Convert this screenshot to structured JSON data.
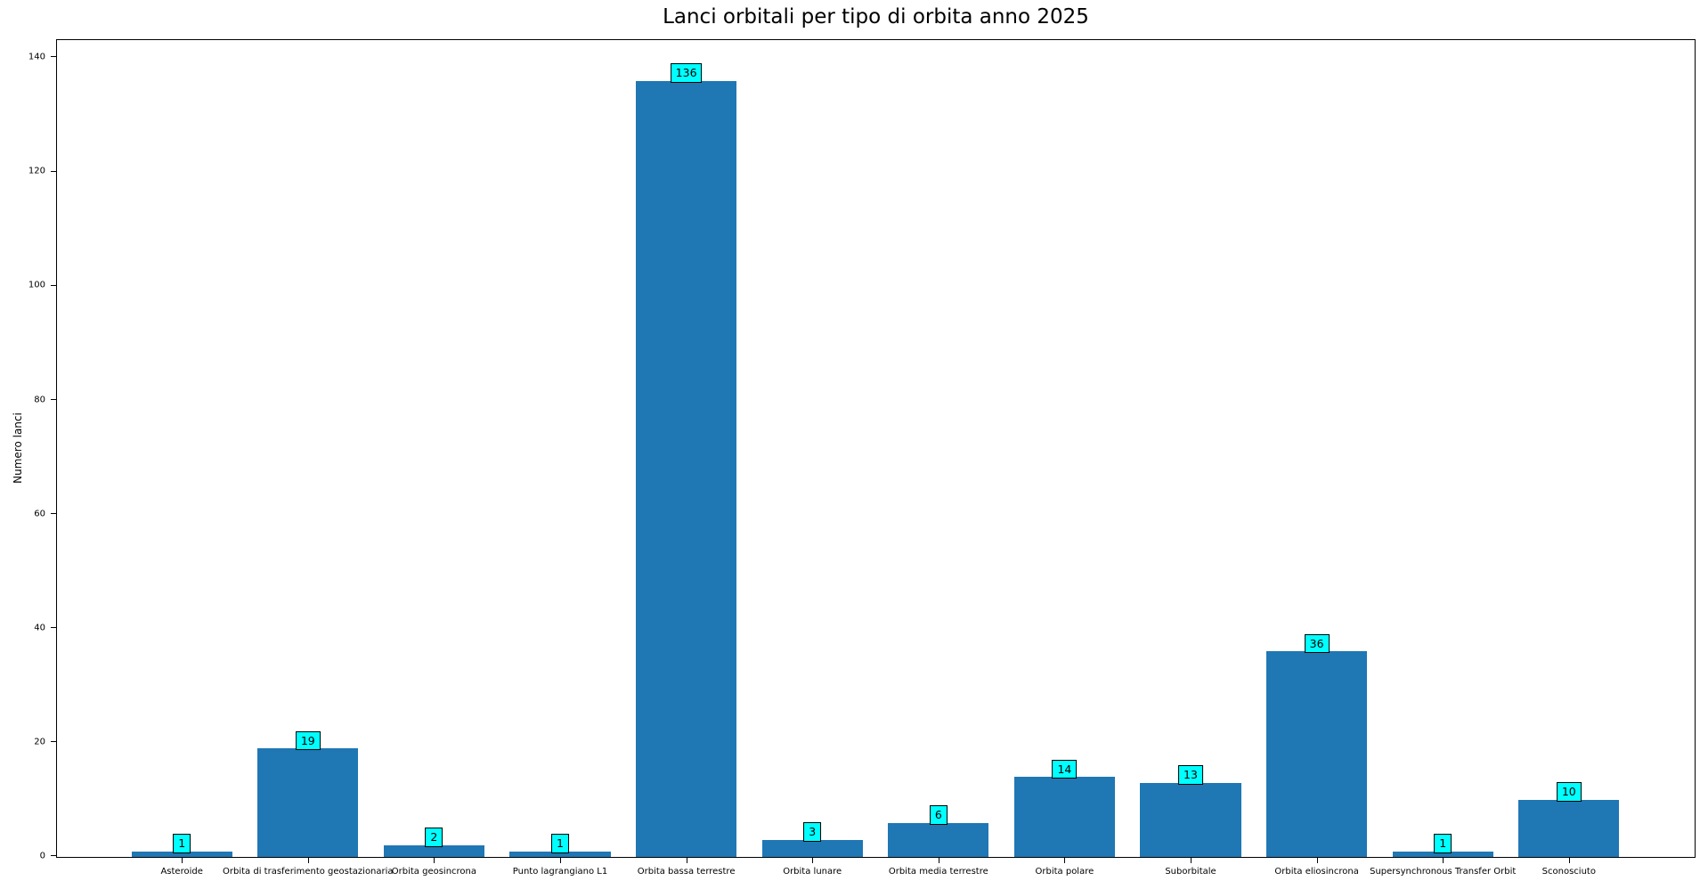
{
  "chart_data": {
    "type": "bar",
    "title": "Lanci orbitali per tipo di orbita anno 2025",
    "xlabel": "",
    "ylabel": "Numero lanci",
    "categories": [
      "Asteroide",
      "Orbita di trasferimento geostazionaria",
      "Orbita geosincrona",
      "Punto lagrangiano L1",
      "Orbita bassa terrestre",
      "Orbita lunare",
      "Orbita media terrestre",
      "Orbita polare",
      "Suborbitale",
      "Orbita eliosincrona",
      "Supersynchronous Transfer Orbit",
      "Sconosciuto"
    ],
    "values": [
      1,
      19,
      2,
      1,
      136,
      3,
      6,
      14,
      13,
      36,
      1,
      10
    ],
    "yticks": [
      0,
      20,
      40,
      60,
      80,
      100,
      120,
      140
    ],
    "ylim": [
      0,
      143
    ],
    "grid": false,
    "legend": "none",
    "colors": {
      "bar": "#1f77b4",
      "annotation_bg": "#00ffff",
      "annotation_border": "#000000",
      "axis": "#000000",
      "background": "#ffffff",
      "text": "#000000"
    }
  }
}
